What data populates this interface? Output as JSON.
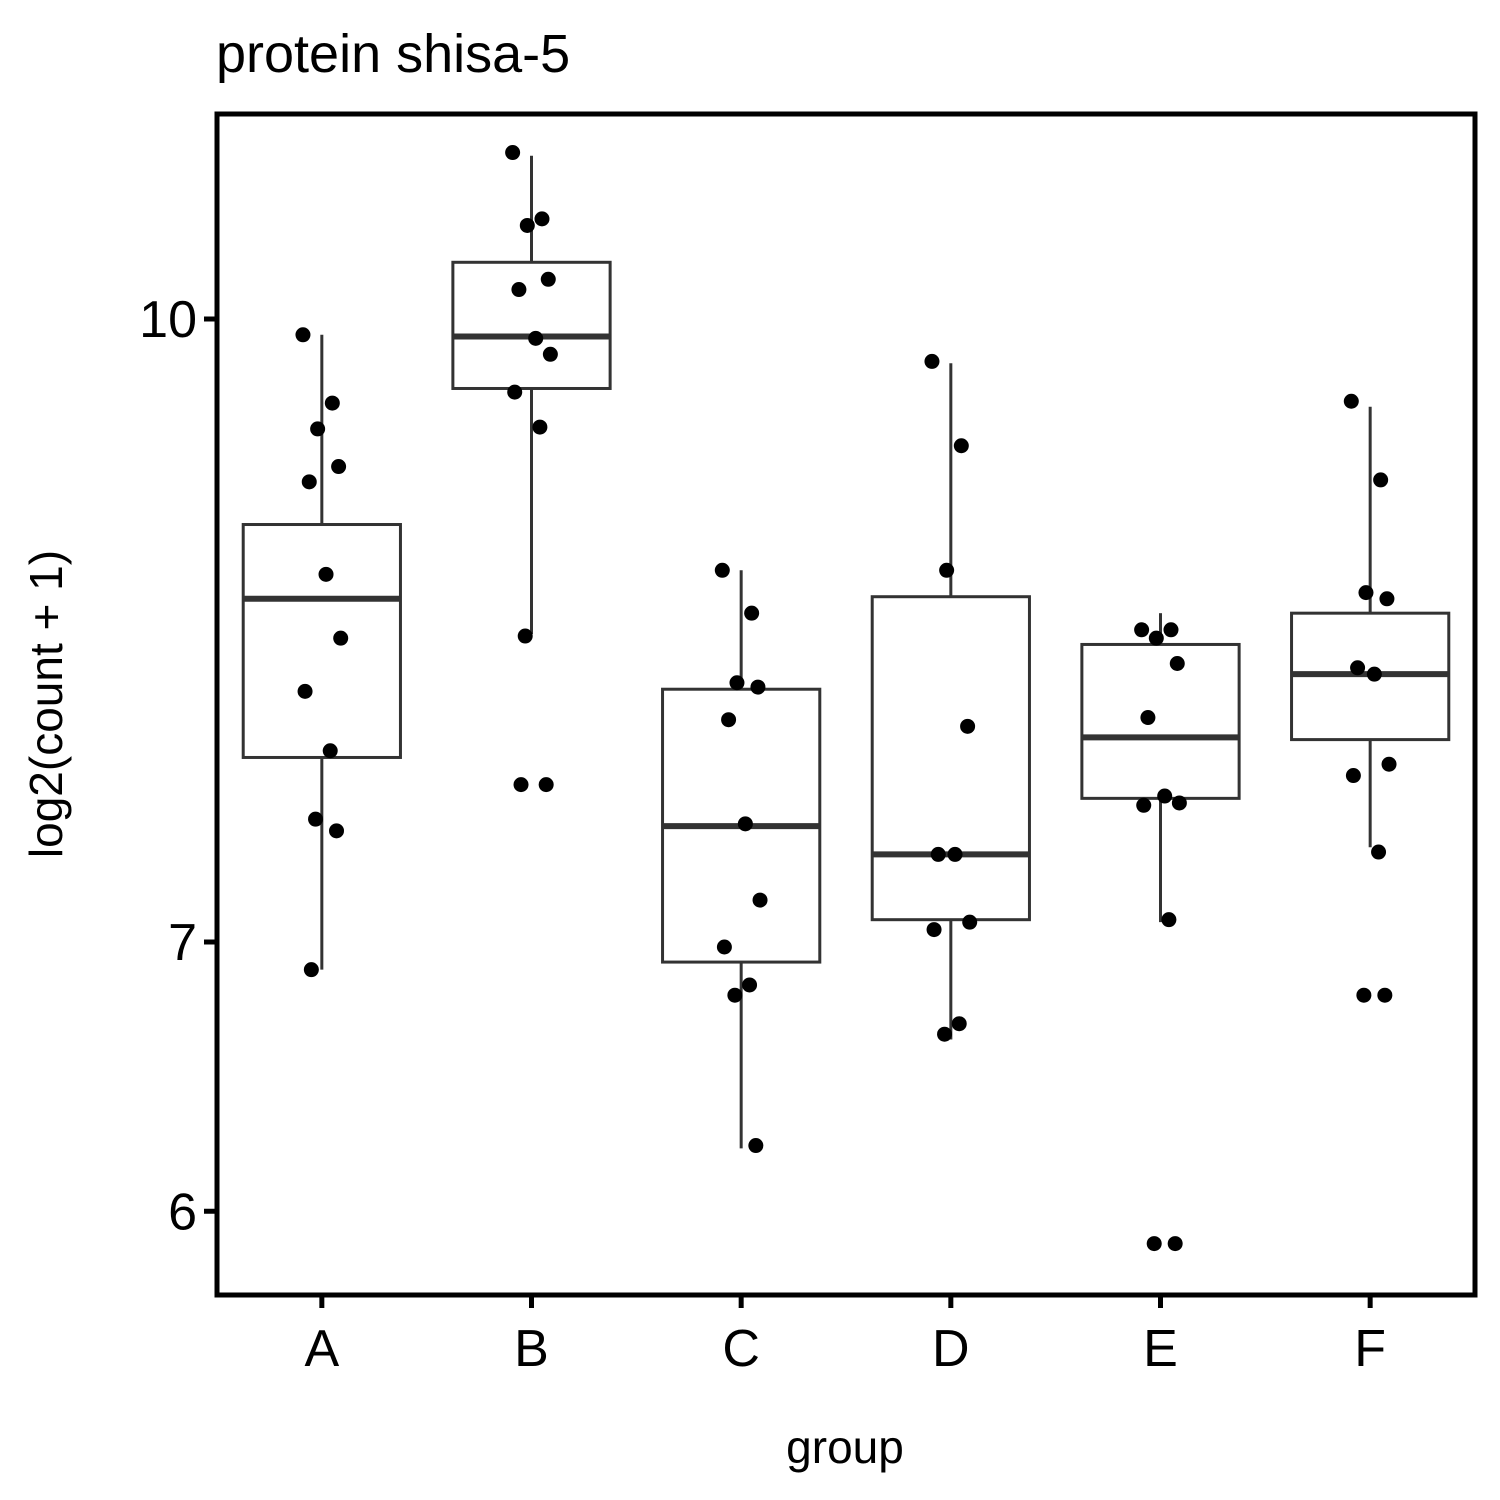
{
  "chart_data": {
    "type": "box",
    "title": "protein shisa-5",
    "xlabel": "group",
    "ylabel": "log2(count + 1)",
    "y_scale": "log",
    "ylim": [
      5.75,
      11.4
    ],
    "y_ticks": [
      6,
      7,
      10
    ],
    "categories": [
      "A",
      "B",
      "C",
      "D",
      "E",
      "F"
    ],
    "boxes": [
      {
        "group": "A",
        "whisker_low": 6.89,
        "q1": 7.78,
        "median": 8.52,
        "q3": 8.89,
        "whisker_high": 9.91
      },
      {
        "group": "B",
        "whisker_low": 8.35,
        "q1": 9.61,
        "median": 9.9,
        "q3": 10.33,
        "whisker_high": 10.98
      },
      {
        "group": "C",
        "whisker_low": 6.22,
        "q1": 6.92,
        "median": 7.48,
        "q3": 8.09,
        "whisker_high": 8.66
      },
      {
        "group": "D",
        "whisker_low": 6.62,
        "q1": 7.09,
        "median": 7.36,
        "q3": 8.53,
        "whisker_high": 9.75
      },
      {
        "group": "E",
        "whisker_low": 7.08,
        "q1": 7.6,
        "median": 7.87,
        "q3": 8.3,
        "whisker_high": 8.45
      },
      {
        "group": "F",
        "whisker_low": 7.39,
        "q1": 7.86,
        "median": 8.16,
        "q3": 8.45,
        "whisker_high": 9.51
      }
    ],
    "points": [
      {
        "group": "A",
        "values": [
          9.91,
          9.53,
          9.39,
          9.19,
          9.11,
          8.64,
          8.33,
          8.08,
          7.81,
          7.51,
          7.46,
          6.89
        ]
      },
      {
        "group": "B",
        "values": [
          11.0,
          10.59,
          10.55,
          10.23,
          10.17,
          9.89,
          9.8,
          9.59,
          9.4,
          8.34,
          7.66,
          7.66
        ]
      },
      {
        "group": "C",
        "values": [
          8.66,
          8.45,
          8.12,
          8.1,
          7.95,
          7.49,
          7.17,
          6.98,
          6.83,
          6.79,
          6.23
        ]
      },
      {
        "group": "D",
        "values": [
          9.76,
          9.3,
          8.66,
          7.92,
          7.36,
          7.36,
          7.08,
          7.05,
          6.68,
          6.64
        ]
      },
      {
        "group": "E",
        "values": [
          8.37,
          8.37,
          8.33,
          8.21,
          7.96,
          7.61,
          7.58,
          7.57,
          7.09,
          5.89,
          5.89
        ]
      },
      {
        "group": "F",
        "values": [
          9.54,
          9.12,
          8.55,
          8.52,
          8.19,
          8.16,
          7.75,
          7.7,
          7.37,
          6.79,
          6.79
        ]
      }
    ]
  }
}
